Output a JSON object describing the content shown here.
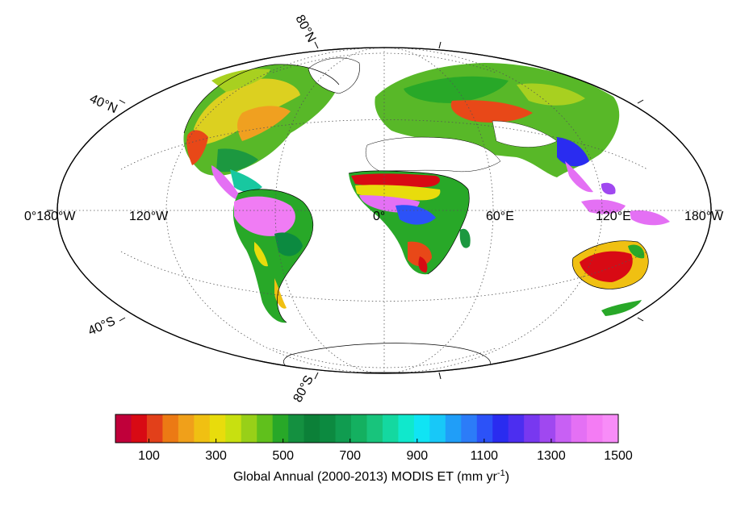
{
  "map": {
    "projection": "Hammer",
    "longitude_labels": [
      "0°180°W",
      "120°W",
      "0°",
      "60°E",
      "120°E",
      "180°W"
    ],
    "latitude_labels": [
      "80°N",
      "40°N",
      "40°S",
      "80°S"
    ],
    "colors": {
      "ocean": "#ffffff",
      "coast": "#000000",
      "grid": "#555555"
    }
  },
  "legend": {
    "tick_labels": [
      "100",
      "300",
      "500",
      "700",
      "900",
      "1100",
      "1300",
      "1500"
    ],
    "caption_main": "Global Annual (2000-2013) MODIS ET (mm yr",
    "caption_sup": "-1",
    "caption_end": ")",
    "range": [
      0,
      1500
    ],
    "colors": [
      "#c0003a",
      "#d80a14",
      "#e2401a",
      "#ec7a14",
      "#f0a01a",
      "#f0c012",
      "#e8dc0c",
      "#c8e010",
      "#98d018",
      "#60c01c",
      "#28a828",
      "#149040",
      "#0c8038",
      "#0c8a40",
      "#109c50",
      "#14b060",
      "#18c47c",
      "#14d8a0",
      "#10e8cc",
      "#10e4f4",
      "#18c8f8",
      "#209ef8",
      "#2c7cf8",
      "#2c52f8",
      "#2a2cf0",
      "#4c2ef0",
      "#7838f0",
      "#a048f0",
      "#c860f4",
      "#e470f4",
      "#f47cf4",
      "#f88cf8"
    ]
  }
}
